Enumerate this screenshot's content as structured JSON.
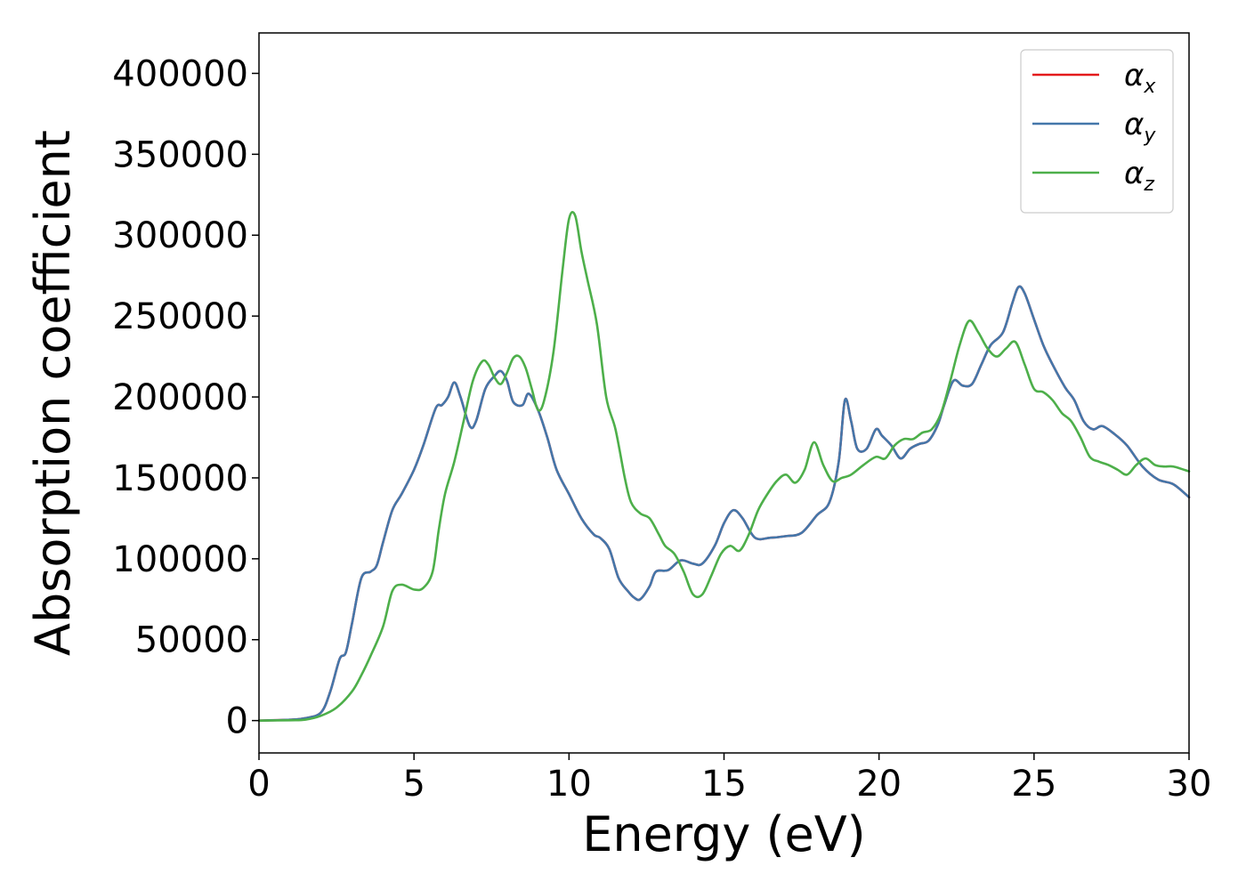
{
  "chart_data": {
    "type": "line",
    "xlabel": "Energy (eV)",
    "ylabel": "Absorption coefficient",
    "xlim": [
      0,
      30
    ],
    "ylim": [
      -20000,
      425000
    ],
    "xticks": [
      0,
      5,
      10,
      15,
      20,
      25,
      30
    ],
    "yticks": [
      0,
      50000,
      100000,
      150000,
      200000,
      250000,
      300000,
      350000,
      400000
    ],
    "grid": false,
    "legend_position": "top-right",
    "series": [
      {
        "name": "α_x",
        "legend_symbol": "α",
        "legend_sub": "x",
        "color": "#e41a1c",
        "x": [
          0,
          1,
          1.5,
          2,
          2.3,
          2.6,
          2.8,
          3.0,
          3.3,
          3.6,
          3.8,
          4.0,
          4.3,
          4.6,
          5.0,
          5.3,
          5.7,
          5.9,
          6.1,
          6.3,
          6.5,
          6.8,
          7.0,
          7.3,
          7.6,
          7.8,
          8.0,
          8.2,
          8.5,
          8.7,
          9.0,
          9.3,
          9.6,
          10.0,
          10.4,
          10.8,
          11.0,
          11.3,
          11.6,
          11.9,
          12.1,
          12.3,
          12.6,
          12.8,
          13.2,
          13.6,
          14.0,
          14.3,
          14.7,
          15.0,
          15.3,
          15.6,
          16.0,
          16.5,
          17.0,
          17.5,
          18.0,
          18.4,
          18.7,
          18.9,
          19.1,
          19.3,
          19.6,
          19.9,
          20.1,
          20.4,
          20.7,
          21.0,
          21.3,
          21.6,
          21.9,
          22.1,
          22.4,
          22.7,
          23.0,
          23.3,
          23.6,
          24.0,
          24.3,
          24.5,
          24.7,
          25.0,
          25.3,
          25.6,
          26.0,
          26.3,
          26.6,
          26.9,
          27.2,
          27.6,
          28.0,
          28.5,
          29.0,
          29.5,
          30.0
        ],
        "y": [
          0,
          500,
          1500,
          5000,
          18000,
          38000,
          42000,
          60000,
          88000,
          92000,
          96000,
          110000,
          130000,
          140000,
          155000,
          170000,
          193000,
          195000,
          200000,
          209000,
          200000,
          182000,
          185000,
          205000,
          213000,
          216000,
          210000,
          197000,
          195000,
          202000,
          192000,
          175000,
          155000,
          140000,
          125000,
          115000,
          113000,
          106000,
          88000,
          80000,
          76000,
          75000,
          83000,
          92000,
          93000,
          99000,
          97000,
          97000,
          108000,
          122000,
          130000,
          125000,
          113000,
          113000,
          114000,
          116000,
          127000,
          135000,
          160000,
          198000,
          185000,
          168000,
          168000,
          180000,
          176000,
          170000,
          162000,
          168000,
          171000,
          173000,
          183000,
          195000,
          210000,
          207000,
          208000,
          220000,
          232000,
          240000,
          258000,
          268000,
          264000,
          248000,
          232000,
          220000,
          206000,
          198000,
          185000,
          180000,
          182000,
          177000,
          170000,
          157000,
          149000,
          146000,
          138000
        ]
      },
      {
        "name": "α_y",
        "legend_symbol": "α",
        "legend_sub": "y",
        "color": "#4477aa",
        "x": [
          0,
          1,
          1.5,
          2,
          2.3,
          2.6,
          2.8,
          3.0,
          3.3,
          3.6,
          3.8,
          4.0,
          4.3,
          4.6,
          5.0,
          5.3,
          5.7,
          5.9,
          6.1,
          6.3,
          6.5,
          6.8,
          7.0,
          7.3,
          7.6,
          7.8,
          8.0,
          8.2,
          8.5,
          8.7,
          9.0,
          9.3,
          9.6,
          10.0,
          10.4,
          10.8,
          11.0,
          11.3,
          11.6,
          11.9,
          12.1,
          12.3,
          12.6,
          12.8,
          13.2,
          13.6,
          14.0,
          14.3,
          14.7,
          15.0,
          15.3,
          15.6,
          16.0,
          16.5,
          17.0,
          17.5,
          18.0,
          18.4,
          18.7,
          18.9,
          19.1,
          19.3,
          19.6,
          19.9,
          20.1,
          20.4,
          20.7,
          21.0,
          21.3,
          21.6,
          21.9,
          22.1,
          22.4,
          22.7,
          23.0,
          23.3,
          23.6,
          24.0,
          24.3,
          24.5,
          24.7,
          25.0,
          25.3,
          25.6,
          26.0,
          26.3,
          26.6,
          26.9,
          27.2,
          27.6,
          28.0,
          28.5,
          29.0,
          29.5,
          30.0
        ],
        "y": [
          0,
          500,
          1500,
          5000,
          18000,
          38000,
          42000,
          60000,
          88000,
          92000,
          96000,
          110000,
          130000,
          140000,
          155000,
          170000,
          193000,
          195000,
          200000,
          209000,
          200000,
          182000,
          185000,
          205000,
          213000,
          216000,
          210000,
          197000,
          195000,
          202000,
          192000,
          175000,
          155000,
          140000,
          125000,
          115000,
          113000,
          106000,
          88000,
          80000,
          76000,
          75000,
          83000,
          92000,
          93000,
          99000,
          97000,
          97000,
          108000,
          122000,
          130000,
          125000,
          113000,
          113000,
          114000,
          116000,
          127000,
          135000,
          160000,
          198000,
          185000,
          168000,
          168000,
          180000,
          176000,
          170000,
          162000,
          168000,
          171000,
          173000,
          183000,
          195000,
          210000,
          207000,
          208000,
          220000,
          232000,
          240000,
          258000,
          268000,
          264000,
          248000,
          232000,
          220000,
          206000,
          198000,
          185000,
          180000,
          182000,
          177000,
          170000,
          157000,
          149000,
          146000,
          138000
        ]
      },
      {
        "name": "α_z",
        "legend_symbol": "α",
        "legend_sub": "z",
        "color": "#4daf4a",
        "x": [
          0,
          1,
          1.5,
          2.0,
          2.5,
          3.0,
          3.3,
          3.6,
          4.0,
          4.3,
          4.6,
          5.0,
          5.3,
          5.6,
          5.8,
          6.0,
          6.3,
          6.6,
          6.9,
          7.2,
          7.4,
          7.6,
          7.8,
          8.0,
          8.2,
          8.4,
          8.6,
          8.8,
          9.0,
          9.2,
          9.5,
          9.8,
          10.0,
          10.2,
          10.4,
          10.6,
          10.9,
          11.2,
          11.5,
          11.8,
          12.0,
          12.3,
          12.6,
          12.9,
          13.1,
          13.4,
          13.7,
          14.0,
          14.3,
          14.6,
          14.9,
          15.2,
          15.5,
          15.8,
          16.1,
          16.4,
          16.7,
          17.0,
          17.3,
          17.6,
          17.9,
          18.2,
          18.5,
          18.8,
          19.1,
          19.5,
          19.9,
          20.2,
          20.5,
          20.8,
          21.1,
          21.4,
          21.7,
          22.0,
          22.3,
          22.6,
          22.9,
          23.2,
          23.5,
          23.8,
          24.1,
          24.4,
          24.7,
          25.0,
          25.3,
          25.6,
          25.9,
          26.2,
          26.5,
          26.8,
          27.1,
          27.4,
          27.7,
          28.0,
          28.3,
          28.6,
          28.9,
          29.2,
          29.5,
          30.0
        ],
        "y": [
          0,
          200,
          600,
          3000,
          8000,
          18000,
          28000,
          40000,
          58000,
          80000,
          84000,
          81000,
          82000,
          92000,
          118000,
          140000,
          160000,
          185000,
          210000,
          222000,
          220000,
          212000,
          208000,
          215000,
          224000,
          225000,
          218000,
          205000,
          192000,
          198000,
          228000,
          280000,
          310000,
          312000,
          290000,
          272000,
          245000,
          200000,
          180000,
          150000,
          135000,
          128000,
          125000,
          115000,
          108000,
          103000,
          92000,
          78000,
          78000,
          90000,
          103000,
          108000,
          105000,
          115000,
          130000,
          140000,
          148000,
          152000,
          147000,
          155000,
          172000,
          158000,
          148000,
          150000,
          152000,
          158000,
          163000,
          162000,
          170000,
          174000,
          174000,
          178000,
          180000,
          190000,
          210000,
          232000,
          247000,
          240000,
          230000,
          225000,
          230000,
          234000,
          220000,
          205000,
          203000,
          198000,
          190000,
          185000,
          175000,
          163000,
          160000,
          158000,
          155000,
          152000,
          158000,
          162000,
          158000,
          157000,
          157000,
          154000
        ]
      }
    ]
  }
}
